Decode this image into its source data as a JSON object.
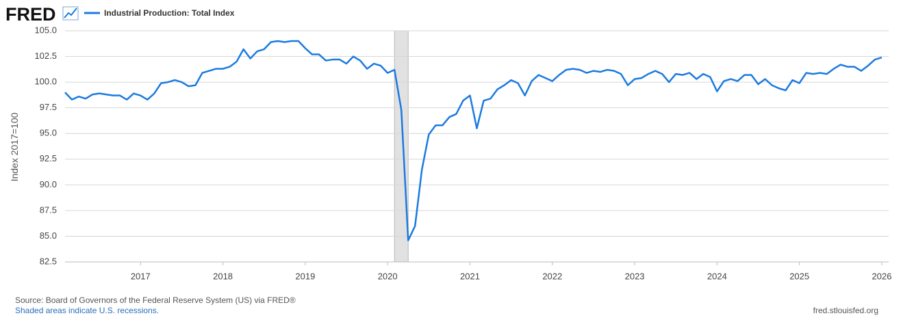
{
  "logo": "FRED",
  "chart_data": {
    "type": "line",
    "y_label": "Index 2017=100",
    "x": [
      "2016-02",
      "2016-03",
      "2016-04",
      "2016-05",
      "2016-06",
      "2016-07",
      "2016-08",
      "2016-09",
      "2016-10",
      "2016-11",
      "2016-12",
      "2017-01",
      "2017-02",
      "2017-03",
      "2017-04",
      "2017-05",
      "2017-06",
      "2017-07",
      "2017-08",
      "2017-09",
      "2017-10",
      "2017-11",
      "2017-12",
      "2018-01",
      "2018-02",
      "2018-03",
      "2018-04",
      "2018-05",
      "2018-06",
      "2018-07",
      "2018-08",
      "2018-09",
      "2018-10",
      "2018-11",
      "2018-12",
      "2019-01",
      "2019-02",
      "2019-03",
      "2019-04",
      "2019-05",
      "2019-06",
      "2019-07",
      "2019-08",
      "2019-09",
      "2019-10",
      "2019-11",
      "2019-12",
      "2020-01",
      "2020-02",
      "2020-03",
      "2020-04",
      "2020-05",
      "2020-06",
      "2020-07",
      "2020-08",
      "2020-09",
      "2020-10",
      "2020-11",
      "2020-12",
      "2021-01",
      "2021-02",
      "2021-03",
      "2021-04",
      "2021-05",
      "2021-06",
      "2021-07",
      "2021-08",
      "2021-09",
      "2021-10",
      "2021-11",
      "2021-12",
      "2022-01",
      "2022-02",
      "2022-03",
      "2022-04",
      "2022-05",
      "2022-06",
      "2022-07",
      "2022-08",
      "2022-09",
      "2022-10",
      "2022-11",
      "2022-12",
      "2023-01",
      "2023-02",
      "2023-03",
      "2023-04",
      "2023-05",
      "2023-06",
      "2023-07",
      "2023-08",
      "2023-09",
      "2023-10",
      "2023-11",
      "2023-12",
      "2024-01",
      "2024-02",
      "2024-03",
      "2024-04",
      "2024-05",
      "2024-06",
      "2024-07",
      "2024-08",
      "2024-09",
      "2024-10",
      "2024-11",
      "2024-12",
      "2025-01",
      "2025-02",
      "2025-03",
      "2025-04",
      "2025-05",
      "2025-06",
      "2025-07",
      "2025-08",
      "2025-09",
      "2025-10",
      "2025-11",
      "2025-12",
      "2026-01"
    ],
    "series": [
      {
        "name": "Industrial Production: Total Index",
        "color": "#1a7ae0",
        "values": [
          99.0,
          98.3,
          98.6,
          98.4,
          98.8,
          98.9,
          98.8,
          98.7,
          98.7,
          98.3,
          98.9,
          98.7,
          98.3,
          98.9,
          99.9,
          100.0,
          100.2,
          100.0,
          99.6,
          99.7,
          100.9,
          101.1,
          101.3,
          101.3,
          101.5,
          102.0,
          103.2,
          102.3,
          103.0,
          103.2,
          103.9,
          104.0,
          103.9,
          104.0,
          104.0,
          103.3,
          102.7,
          102.7,
          102.1,
          102.2,
          102.2,
          101.8,
          102.5,
          102.1,
          101.3,
          101.8,
          101.6,
          100.9,
          101.2,
          97.3,
          84.6,
          86.0,
          91.5,
          94.9,
          95.8,
          95.8,
          96.6,
          96.9,
          98.2,
          98.7,
          95.5,
          98.2,
          98.4,
          99.3,
          99.7,
          100.2,
          99.9,
          98.7,
          100.1,
          100.7,
          100.4,
          100.1,
          100.7,
          101.2,
          101.3,
          101.2,
          100.9,
          101.1,
          101.0,
          101.2,
          101.1,
          100.8,
          99.7,
          100.3,
          100.4,
          100.8,
          101.1,
          100.8,
          100.0,
          100.8,
          100.7,
          100.9,
          100.3,
          100.8,
          100.5,
          99.1,
          100.1,
          100.3,
          100.1,
          100.7,
          100.7,
          99.8,
          100.3,
          99.7,
          99.4,
          99.2,
          100.2,
          99.9,
          100.9,
          100.8,
          100.9,
          100.8,
          101.3,
          101.7,
          101.5,
          101.5,
          101.1,
          101.6,
          102.2,
          102.4
        ]
      }
    ],
    "recessions": [
      {
        "start": "2020-02",
        "end": "2020-04"
      }
    ],
    "xlim": [
      "2016-02",
      "2026-02"
    ],
    "xticks": [
      2017,
      2018,
      2019,
      2020,
      2021,
      2022,
      2023,
      2024,
      2025,
      2026
    ],
    "ylim": [
      82.5,
      105
    ],
    "yticks": [
      {
        "value": 82.5,
        "label": "82.5"
      },
      {
        "value": 85,
        "label": "85.0"
      },
      {
        "value": 87.5,
        "label": "87.5"
      },
      {
        "value": 90,
        "label": "90.0"
      },
      {
        "value": 92.5,
        "label": "92.5"
      },
      {
        "value": 95,
        "label": "95.0"
      },
      {
        "value": 97.5,
        "label": "97.5"
      },
      {
        "value": 100,
        "label": "100.0"
      },
      {
        "value": 102.5,
        "label": "102.5"
      },
      {
        "value": 105,
        "label": "105.0"
      }
    ],
    "grid": true,
    "source": "Source: Board of Governors of the Federal Reserve System (US) via FRED®",
    "note": "Shaded areas indicate U.S. recessions.",
    "site": "fred.stlouisfed.org"
  }
}
